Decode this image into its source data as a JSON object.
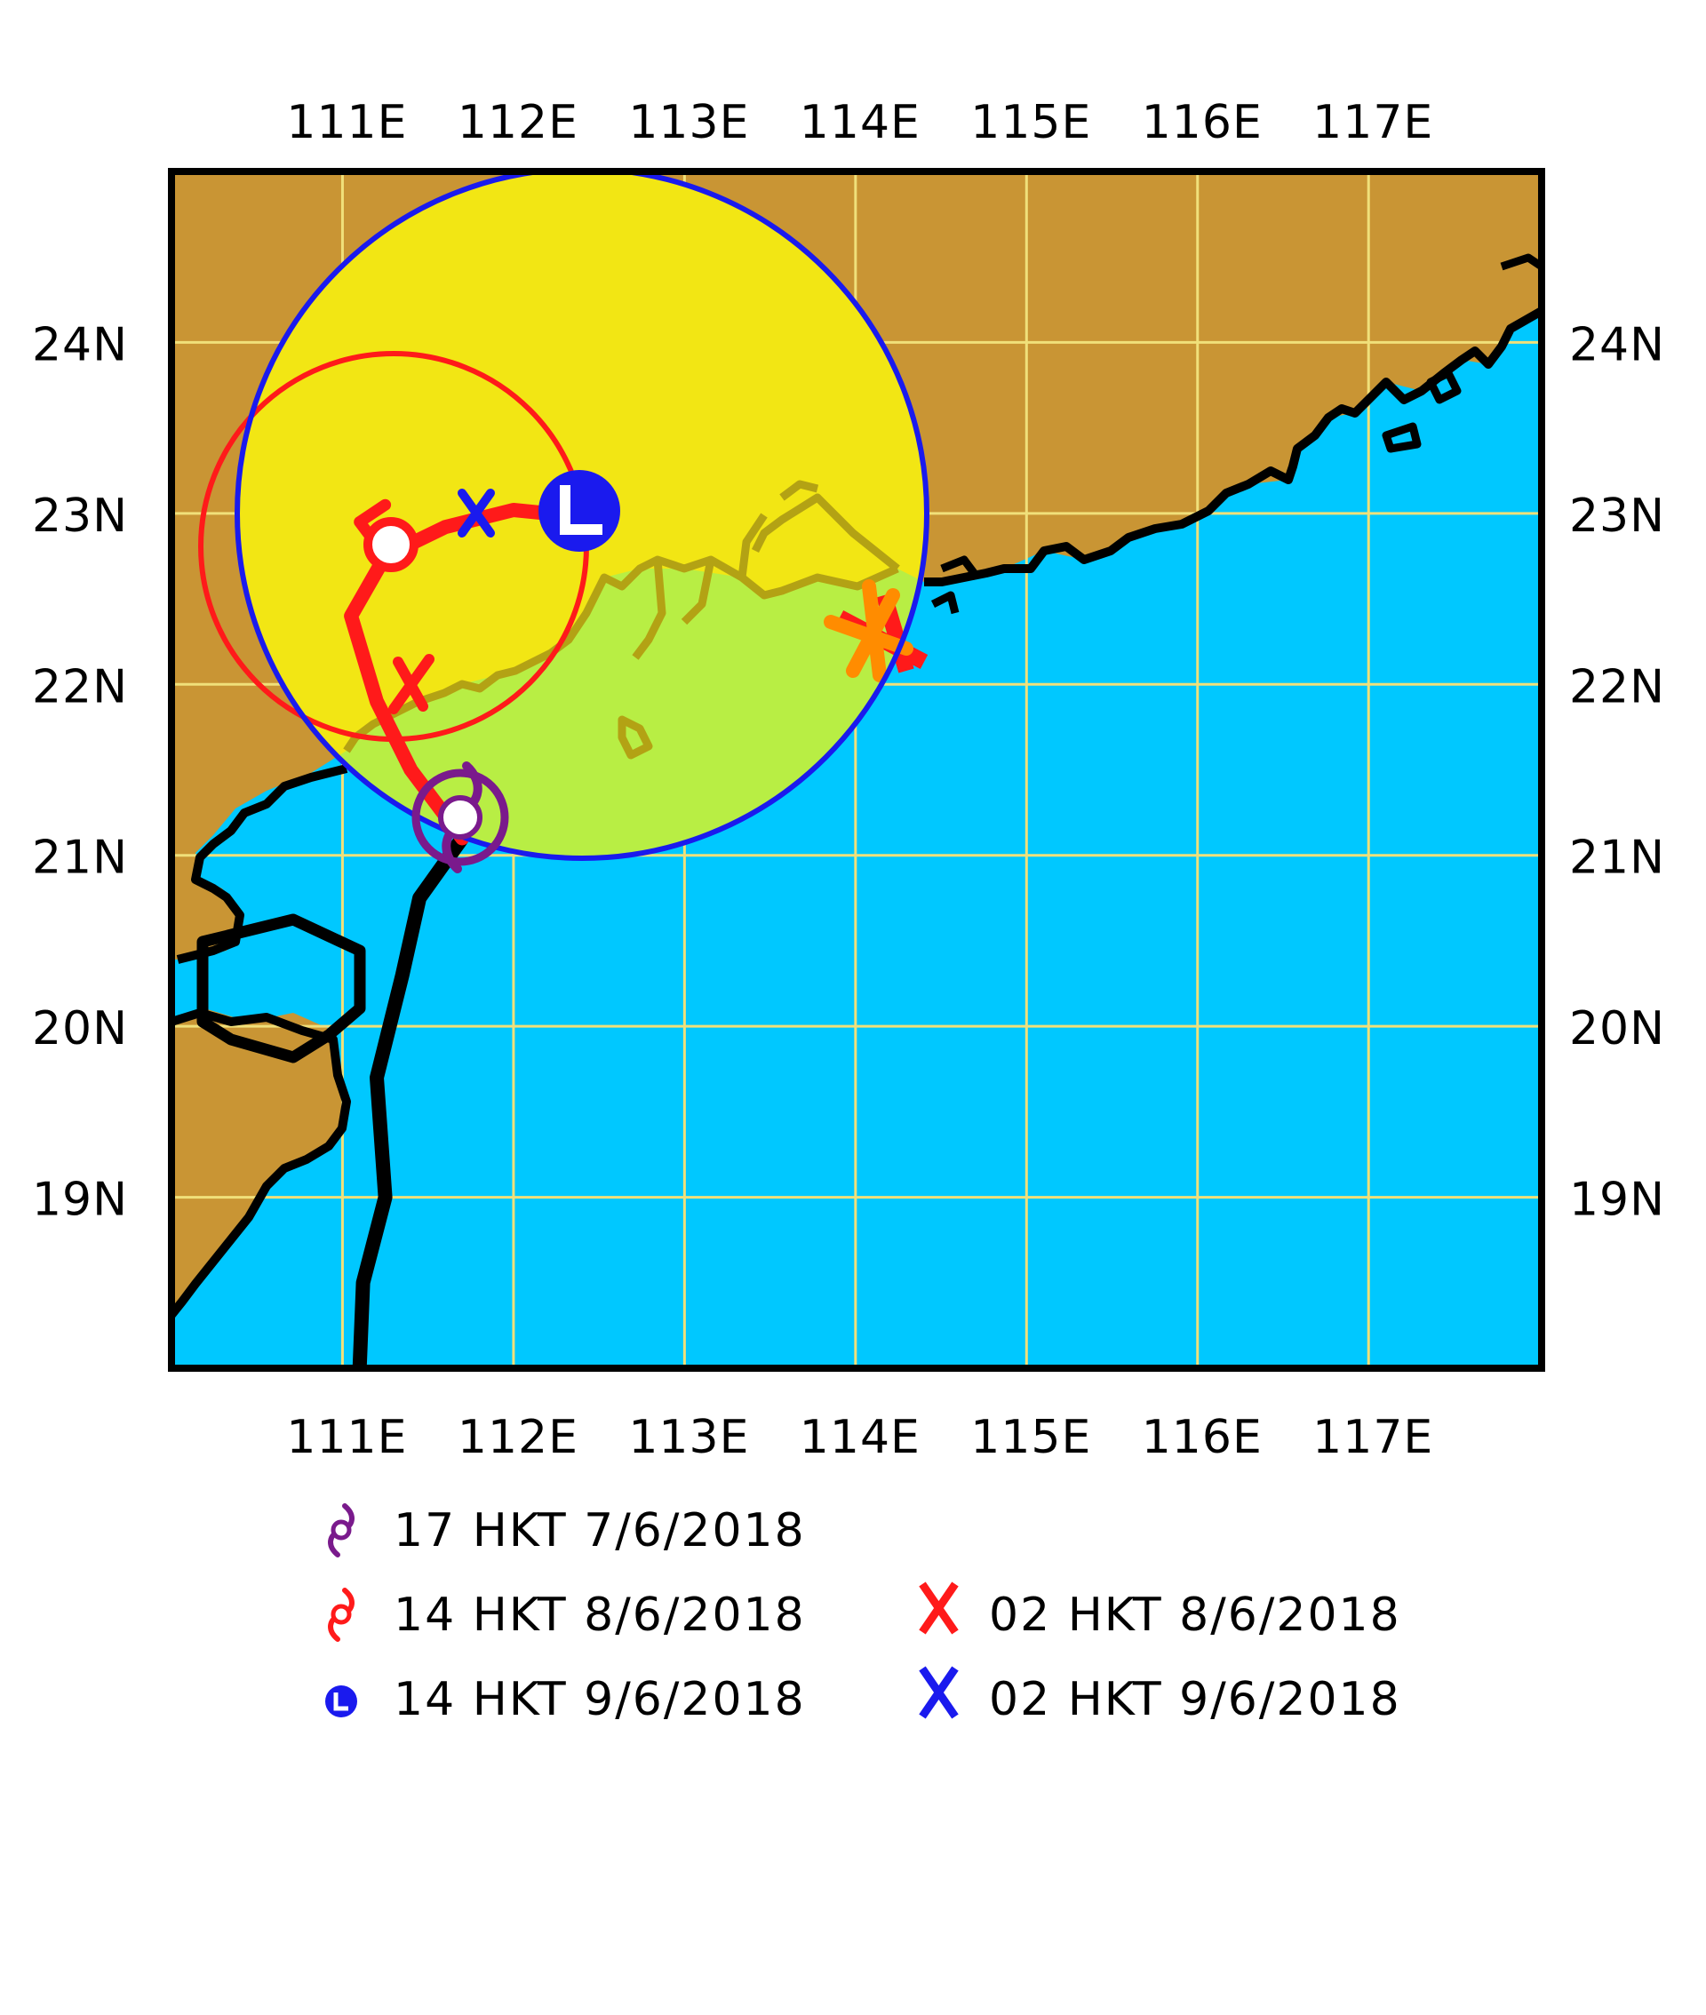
{
  "map": {
    "lon_ticks": [
      "111E",
      "112E",
      "113E",
      "114E",
      "115E",
      "116E",
      "117E"
    ],
    "lat_ticks": [
      "24N",
      "23N",
      "22N",
      "21N",
      "20N",
      "19N"
    ],
    "lon_range": [
      110,
      118
    ],
    "lat_range": [
      18,
      25
    ],
    "colors": {
      "land": "#c99534",
      "sea": "#00c8ff",
      "grid": "#f0e07a",
      "prob_area": "#f2e614",
      "prob_area_over_sea": "#b8ee44",
      "coastline": "#000000",
      "track_past": "#000000",
      "track_forecast": "#ff1a1a",
      "circle_17hkt_7_6": "#7a1a8c",
      "circle_14hkt_8_6": "#ff1a1a",
      "circle_14hkt_9_6": "#1a1aee",
      "hong_kong_marker": "#ff8c00"
    }
  },
  "track": {
    "past": [
      [
        111.1,
        18.0
      ],
      [
        111.12,
        18.5
      ],
      [
        111.25,
        19.0
      ],
      [
        111.2,
        19.7
      ],
      [
        111.35,
        20.3
      ],
      [
        111.45,
        20.75
      ],
      [
        111.7,
        21.1
      ]
    ],
    "forecast": [
      [
        111.7,
        21.1
      ],
      [
        111.4,
        21.5
      ],
      [
        111.2,
        21.9
      ],
      [
        111.05,
        22.4
      ],
      [
        111.25,
        22.75
      ],
      [
        111.6,
        22.92
      ],
      [
        112.0,
        23.02
      ],
      [
        112.4,
        22.98
      ]
    ],
    "tail": [
      [
        111.25,
        22.75
      ],
      [
        111.1,
        22.95
      ],
      [
        111.25,
        23.05
      ]
    ]
  },
  "positions": [
    {
      "id": "p1",
      "lon": 111.7,
      "lat": 21.1,
      "symbol": "tropical-cyclone",
      "color": "#7a1a8c",
      "time": "17 HKT 7/6/2018"
    },
    {
      "id": "p2",
      "lon": 111.3,
      "lat": 22.75,
      "symbol": "tropical-cyclone",
      "color": "#ff1a1a",
      "time": "14 HKT 8/6/2018"
    },
    {
      "id": "p3",
      "lon": 112.4,
      "lat": 22.98,
      "symbol": "low-pressure",
      "color": "#1a1aee",
      "time": "14 HKT 9/6/2018",
      "glyph": "L"
    }
  ],
  "intermediate": [
    {
      "id": "x1",
      "lon": 111.4,
      "lat": 21.9,
      "color": "#ff1a1a",
      "time": "02 HKT 8/6/2018",
      "glyph": "X"
    },
    {
      "id": "x2",
      "lon": 111.8,
      "lat": 23.0,
      "color": "#1a1aee",
      "time": "02 HKT 9/6/2018",
      "glyph": "X"
    }
  ],
  "hong_kong": {
    "lon": 114.17,
    "lat": 22.3
  },
  "legend": {
    "items_left": [
      {
        "label": "17 HKT 7/6/2018",
        "color": "#7a1a8c",
        "symbol": "tropical-cyclone-icon"
      },
      {
        "label": "14 HKT 8/6/2018",
        "color": "#ff1a1a",
        "symbol": "tropical-cyclone-icon"
      },
      {
        "label": "14 HKT 9/6/2018",
        "color": "#1a1aee",
        "symbol": "low-pressure-icon"
      }
    ],
    "items_right": [
      {
        "label": "02 HKT 8/6/2018",
        "color": "#ff1a1a",
        "symbol": "x-mark-icon"
      },
      {
        "label": "02 HKT 9/6/2018",
        "color": "#1a1aee",
        "symbol": "x-mark-icon"
      }
    ]
  }
}
